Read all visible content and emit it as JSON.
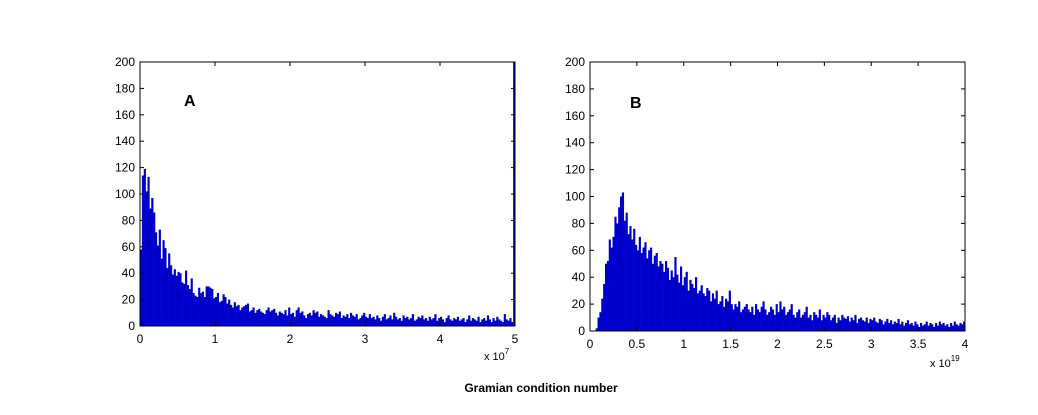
{
  "figure": {
    "xlabel": "Gramian condition number",
    "bar_color": "#0000cc"
  },
  "chart_data": [
    {
      "type": "bar",
      "panel_label": "A",
      "xlim": [
        0,
        5
      ],
      "ylim": [
        0,
        200
      ],
      "x_multiplier": "x 10",
      "x_exponent": "7",
      "xticks": [
        "0",
        "1",
        "2",
        "3",
        "4",
        "5"
      ],
      "yticks": [
        "0",
        "20",
        "40",
        "60",
        "80",
        "100",
        "120",
        "140",
        "160",
        "180",
        "200"
      ],
      "bin_width": 0.025,
      "values": [
        58,
        114,
        119,
        102,
        113,
        89,
        97,
        86,
        71,
        61,
        73,
        51,
        65,
        59,
        44,
        55,
        46,
        39,
        43,
        38,
        41,
        40,
        33,
        32,
        42,
        31,
        28,
        36,
        25,
        23,
        22,
        29,
        25,
        26,
        22,
        30,
        30,
        29,
        28,
        21,
        22,
        25,
        18,
        19,
        24,
        22,
        17,
        20,
        16,
        14,
        18,
        15,
        16,
        12,
        14,
        15,
        16,
        17,
        11,
        12,
        14,
        10,
        12,
        13,
        11,
        10,
        9,
        12,
        14,
        11,
        12,
        13,
        10,
        8,
        11,
        10,
        9,
        12,
        8,
        14,
        9,
        10,
        7,
        12,
        14,
        10,
        11,
        8,
        6,
        9,
        10,
        8,
        12,
        10,
        11,
        7,
        9,
        8,
        7,
        6,
        12,
        9,
        8,
        7,
        10,
        9,
        11,
        6,
        8,
        7,
        9,
        6,
        10,
        8,
        7,
        9,
        5,
        6,
        8,
        10,
        7,
        6,
        9,
        6,
        7,
        5,
        8,
        6,
        4,
        7,
        9,
        5,
        6,
        8,
        5,
        10,
        7,
        5,
        6,
        4,
        8,
        6,
        7,
        5,
        6,
        9,
        4,
        5,
        7,
        6,
        8,
        5,
        6,
        4,
        7,
        5,
        6,
        9,
        4,
        6,
        7,
        5,
        3,
        6,
        8,
        5,
        4,
        6,
        5,
        7,
        4,
        5,
        6,
        3,
        5,
        8,
        4,
        6,
        5,
        4,
        7,
        3,
        5,
        6,
        4,
        8,
        5,
        3,
        6,
        4,
        7,
        5,
        4,
        3,
        9,
        5,
        4,
        6,
        3,
        200
      ]
    },
    {
      "type": "bar",
      "panel_label": "B",
      "xlim": [
        0,
        4
      ],
      "ylim": [
        0,
        200
      ],
      "x_multiplier": "x 10",
      "x_exponent": "19",
      "xticks": [
        "0",
        "0.5",
        "1",
        "1.5",
        "2",
        "2.5",
        "3",
        "3.5",
        "4"
      ],
      "yticks": [
        "0",
        "20",
        "40",
        "60",
        "80",
        "100",
        "120",
        "140",
        "160",
        "180",
        "200"
      ],
      "bin_width": 0.02,
      "values": [
        0,
        0,
        0,
        2,
        10,
        14,
        24,
        35,
        50,
        52,
        68,
        62,
        70,
        85,
        80,
        92,
        100,
        103,
        82,
        88,
        72,
        78,
        68,
        76,
        64,
        60,
        70,
        58,
        62,
        66,
        54,
        60,
        62,
        50,
        56,
        58,
        48,
        52,
        50,
        44,
        52,
        47,
        38,
        45,
        40,
        55,
        42,
        36,
        48,
        34,
        40,
        44,
        30,
        38,
        35,
        32,
        40,
        28,
        30,
        34,
        28,
        26,
        32,
        30,
        22,
        28,
        24,
        30,
        20,
        22,
        26,
        18,
        24,
        22,
        30,
        20,
        16,
        20,
        18,
        22,
        14,
        16,
        18,
        20,
        16,
        14,
        18,
        12,
        20,
        16,
        14,
        18,
        22,
        16,
        12,
        14,
        18,
        16,
        12,
        20,
        14,
        22,
        16,
        18,
        12,
        14,
        16,
        20,
        12,
        10,
        14,
        16,
        10,
        12,
        14,
        18,
        10,
        12,
        8,
        14,
        12,
        10,
        16,
        8,
        12,
        10,
        14,
        12,
        8,
        10,
        12,
        6,
        10,
        8,
        12,
        10,
        9,
        11,
        7,
        10,
        8,
        12,
        6,
        9,
        10,
        8,
        7,
        10,
        6,
        9,
        8,
        10,
        7,
        6,
        9,
        8,
        5,
        7,
        9,
        6,
        8,
        5,
        7,
        6,
        9,
        5,
        7,
        4,
        6,
        8,
        5,
        6,
        4,
        7,
        5,
        3,
        6,
        4,
        5,
        7,
        4,
        6,
        5,
        3,
        6,
        4,
        7,
        5,
        6,
        4,
        5,
        3,
        6,
        4,
        7,
        5,
        4,
        6,
        5,
        7
      ]
    }
  ]
}
